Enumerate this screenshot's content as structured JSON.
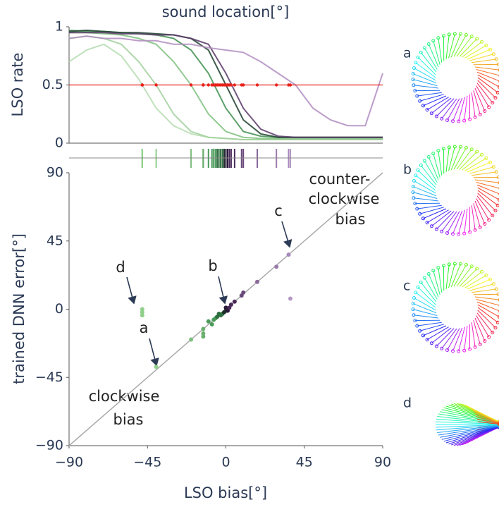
{
  "chart_data": [
    {
      "type": "line",
      "title": "sound location[°]",
      "ylabel": "LSO rate",
      "x": [
        -90,
        -80,
        -70,
        -60,
        -50,
        -40,
        -30,
        -20,
        -10,
        0,
        10,
        20,
        30,
        40,
        50,
        60,
        70,
        80,
        90
      ],
      "xlim": [
        -90,
        90
      ],
      "ylim": [
        0,
        1
      ],
      "yticks": [
        0,
        0.5,
        1
      ],
      "reference_line": {
        "value": 0.5,
        "color": "#e8221c"
      },
      "series": [
        {
          "color": "#b5dcb0",
          "values": [
            0.7,
            0.8,
            0.85,
            0.75,
            0.55,
            0.3,
            0.15,
            0.08,
            0.05,
            0.04,
            0.03,
            0.03,
            0.03,
            0.03,
            0.03,
            0.03,
            0.03,
            0.03,
            0.03
          ]
        },
        {
          "color": "#a0d09a",
          "values": [
            0.9,
            0.92,
            0.9,
            0.85,
            0.7,
            0.5,
            0.25,
            0.1,
            0.05,
            0.04,
            0.03,
            0.03,
            0.03,
            0.03,
            0.03,
            0.03,
            0.03,
            0.03,
            0.03
          ]
        },
        {
          "color": "#7fbf7f",
          "values": [
            0.95,
            0.95,
            0.94,
            0.93,
            0.9,
            0.85,
            0.7,
            0.5,
            0.25,
            0.1,
            0.05,
            0.04,
            0.04,
            0.04,
            0.04,
            0.04,
            0.04,
            0.04,
            0.04
          ]
        },
        {
          "color": "#3f8f4f",
          "values": [
            0.97,
            0.96,
            0.96,
            0.95,
            0.94,
            0.93,
            0.9,
            0.8,
            0.6,
            0.3,
            0.1,
            0.06,
            0.05,
            0.05,
            0.05,
            0.05,
            0.05,
            0.05,
            0.05
          ]
        },
        {
          "color": "#1f3f2f",
          "values": [
            0.96,
            0.97,
            0.96,
            0.95,
            0.95,
            0.94,
            0.93,
            0.9,
            0.8,
            0.5,
            0.2,
            0.08,
            0.05,
            0.05,
            0.05,
            0.05,
            0.05,
            0.05,
            0.05
          ]
        },
        {
          "color": "#5a3a6a",
          "values": [
            0.95,
            0.95,
            0.95,
            0.94,
            0.94,
            0.93,
            0.93,
            0.9,
            0.85,
            0.6,
            0.3,
            0.12,
            0.06,
            0.05,
            0.05,
            0.05,
            0.05,
            0.05,
            0.05
          ]
        },
        {
          "color": "#b08cc0",
          "values": [
            0.9,
            0.92,
            0.9,
            0.9,
            0.88,
            0.88,
            0.85,
            0.85,
            0.82,
            0.8,
            0.78,
            0.7,
            0.6,
            0.5,
            0.3,
            0.2,
            0.15,
            0.15,
            0.6
          ]
        }
      ]
    },
    {
      "type": "scatter",
      "xlabel": "LSO bias[°]",
      "ylabel": "trained DNN error[°]",
      "xlim": [
        -90,
        90
      ],
      "ylim": [
        -90,
        90
      ],
      "xticks": [
        {
          "value": -90,
          "label": "−90"
        },
        {
          "value": -45,
          "label": "−45"
        },
        0,
        45,
        90
      ],
      "yticks": [
        {
          "value": -90,
          "label": "−90"
        },
        {
          "value": -45,
          "label": "−45"
        },
        0,
        45,
        90
      ],
      "x": [
        -48,
        -48,
        -48,
        -40,
        -20,
        -13,
        -13,
        -13,
        -10,
        -8,
        -7,
        -6,
        -5,
        -4,
        -3,
        -2,
        -1,
        0,
        1,
        0,
        1,
        2,
        3,
        5,
        9,
        10,
        18,
        29,
        36,
        37
      ],
      "y": [
        0,
        -2,
        -4,
        -38,
        -20,
        -13,
        -16,
        -18,
        -8,
        -10,
        -7,
        -6,
        -5,
        -3,
        -4,
        -3,
        -2,
        -1,
        -1,
        1,
        0,
        1,
        3,
        5,
        9,
        11,
        18,
        28,
        36,
        7
      ],
      "colors": [
        "#8fcf8a",
        "#8fcf8a",
        "#8fcf8a",
        "#8fcf8a",
        "#7fbf7f",
        "#6aaf6e",
        "#6aaf6e",
        "#6aaf6e",
        "#4a9a5a",
        "#4a9a5a",
        "#4a9a5a",
        "#4a9a5a",
        "#2f6f3f",
        "#2f6f3f",
        "#2f6f3f",
        "#2f6f3f",
        "#1e2f2a",
        "#1e2f2a",
        "#2a1a3a",
        "#2a1a3a",
        "#2a1a3a",
        "#4a2a5a",
        "#4a2a5a",
        "#4a2a5a",
        "#6a4a7a",
        "#6a4a7a",
        "#8a6a9a",
        "#9a7aaa",
        "#a888bb",
        "#b498c4"
      ],
      "diagonal_color": "#aaaaaa",
      "annotations": [
        "d",
        "a",
        "b",
        "c",
        "counter-",
        "clockwise",
        "bias",
        "clockwise",
        "bias"
      ]
    }
  ],
  "panel_labels": [
    "a",
    "b",
    "c",
    "d"
  ]
}
